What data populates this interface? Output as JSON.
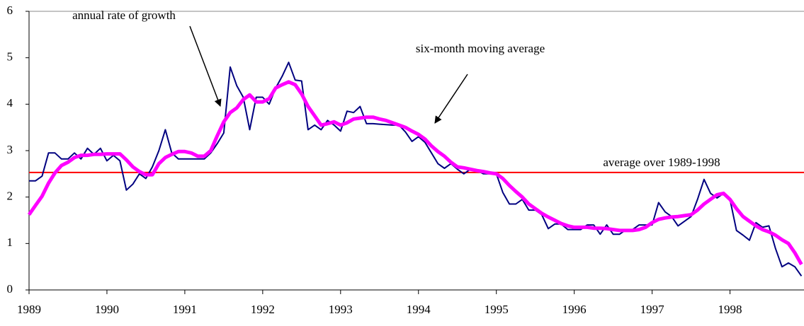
{
  "chart_data": {
    "type": "line",
    "annotations": [
      "annual rate of growth",
      "six-month moving average"
    ],
    "x": [
      1989,
      1989.083,
      1989.167,
      1989.25,
      1989.333,
      1989.417,
      1989.5,
      1989.583,
      1989.667,
      1989.75,
      1989.833,
      1989.917,
      1990,
      1990.083,
      1990.167,
      1990.25,
      1990.333,
      1990.417,
      1990.5,
      1990.583,
      1990.667,
      1990.75,
      1990.833,
      1990.917,
      1991,
      1991.083,
      1991.167,
      1991.25,
      1991.333,
      1991.417,
      1991.5,
      1991.583,
      1991.667,
      1991.75,
      1991.833,
      1991.917,
      1992,
      1992.083,
      1992.167,
      1992.25,
      1992.333,
      1992.417,
      1992.5,
      1992.583,
      1992.667,
      1992.75,
      1992.833,
      1992.917,
      1993,
      1993.083,
      1993.167,
      1993.25,
      1993.333,
      1993.417,
      1993.5,
      1993.583,
      1993.667,
      1993.75,
      1993.833,
      1993.917,
      1994,
      1994.083,
      1994.167,
      1994.25,
      1994.333,
      1994.417,
      1994.5,
      1994.583,
      1994.667,
      1994.75,
      1994.833,
      1994.917,
      1995,
      1995.083,
      1995.167,
      1995.25,
      1995.333,
      1995.417,
      1995.5,
      1995.583,
      1995.667,
      1995.75,
      1995.833,
      1995.917,
      1996,
      1996.083,
      1996.167,
      1996.25,
      1996.333,
      1996.417,
      1996.5,
      1996.583,
      1996.667,
      1996.75,
      1996.833,
      1996.917,
      1997,
      1997.083,
      1997.167,
      1997.25,
      1997.333,
      1997.417,
      1997.5,
      1997.583,
      1997.667,
      1997.75,
      1997.833,
      1997.917,
      1998,
      1998.083,
      1998.167,
      1998.25,
      1998.333,
      1998.417,
      1998.5,
      1998.583,
      1998.667,
      1998.75,
      1998.833,
      1998.917
    ],
    "series": [
      {
        "name": "annual rate of growth",
        "color": "#000080",
        "width": 2,
        "values": [
          2.35,
          2.35,
          2.45,
          2.95,
          2.95,
          2.82,
          2.82,
          2.95,
          2.82,
          3.05,
          2.92,
          3.05,
          2.78,
          2.9,
          2.78,
          2.15,
          2.28,
          2.5,
          2.4,
          2.65,
          3.0,
          3.45,
          2.95,
          2.82,
          2.82,
          2.82,
          2.82,
          2.82,
          2.95,
          3.15,
          3.38,
          4.8,
          4.4,
          4.15,
          3.45,
          4.15,
          4.15,
          4.0,
          4.35,
          4.6,
          4.9,
          4.52,
          4.5,
          3.45,
          3.55,
          3.45,
          3.65,
          3.55,
          3.42,
          3.85,
          3.82,
          3.95,
          3.58,
          3.58,
          3.57,
          3.56,
          3.55,
          3.55,
          3.4,
          3.2,
          3.3,
          3.18,
          2.95,
          2.72,
          2.62,
          2.72,
          2.6,
          2.5,
          2.6,
          2.58,
          2.5,
          2.5,
          2.5,
          2.1,
          1.85,
          1.85,
          1.95,
          1.72,
          1.72,
          1.62,
          1.32,
          1.42,
          1.42,
          1.3,
          1.3,
          1.3,
          1.4,
          1.4,
          1.2,
          1.4,
          1.2,
          1.2,
          1.3,
          1.3,
          1.4,
          1.4,
          1.4,
          1.88,
          1.68,
          1.58,
          1.38,
          1.48,
          1.58,
          1.95,
          2.38,
          2.08,
          1.98,
          2.08,
          1.95,
          1.28,
          1.18,
          1.07,
          1.45,
          1.35,
          1.38,
          0.9,
          0.5,
          0.58,
          0.5,
          0.3
        ]
      },
      {
        "name": "six-month moving average",
        "color": "#ff00ff",
        "width": 5,
        "values": [
          1.62,
          1.82,
          2.02,
          2.3,
          2.52,
          2.68,
          2.75,
          2.85,
          2.9,
          2.9,
          2.92,
          2.92,
          2.93,
          2.93,
          2.93,
          2.8,
          2.65,
          2.55,
          2.48,
          2.48,
          2.72,
          2.85,
          2.92,
          2.98,
          2.98,
          2.95,
          2.88,
          2.88,
          3.0,
          3.32,
          3.62,
          3.82,
          3.92,
          4.1,
          4.2,
          4.05,
          4.05,
          4.12,
          4.35,
          4.42,
          4.48,
          4.42,
          4.22,
          3.95,
          3.75,
          3.55,
          3.58,
          3.62,
          3.55,
          3.6,
          3.68,
          3.7,
          3.72,
          3.72,
          3.68,
          3.65,
          3.6,
          3.55,
          3.5,
          3.42,
          3.35,
          3.25,
          3.1,
          2.98,
          2.88,
          2.75,
          2.65,
          2.63,
          2.6,
          2.57,
          2.55,
          2.52,
          2.5,
          2.4,
          2.25,
          2.12,
          2.0,
          1.85,
          1.75,
          1.65,
          1.57,
          1.5,
          1.43,
          1.38,
          1.35,
          1.35,
          1.35,
          1.33,
          1.33,
          1.32,
          1.3,
          1.28,
          1.28,
          1.28,
          1.3,
          1.35,
          1.45,
          1.52,
          1.55,
          1.57,
          1.58,
          1.6,
          1.62,
          1.72,
          1.85,
          1.95,
          2.05,
          2.08,
          1.95,
          1.75,
          1.58,
          1.48,
          1.38,
          1.3,
          1.25,
          1.18,
          1.08,
          1.0,
          0.8,
          0.55
        ]
      }
    ],
    "reference_line": {
      "value": 2.53,
      "label": "average over 1989-1998",
      "color": "#ff0000"
    },
    "xlim": [
      1989,
      1998.95
    ],
    "xticks": [
      1989,
      1990,
      1991,
      1992,
      1993,
      1994,
      1995,
      1996,
      1997,
      1998
    ],
    "ylim": [
      0,
      6
    ],
    "yticks": [
      0,
      1,
      2,
      3,
      4,
      5,
      6
    ],
    "grid": false
  }
}
